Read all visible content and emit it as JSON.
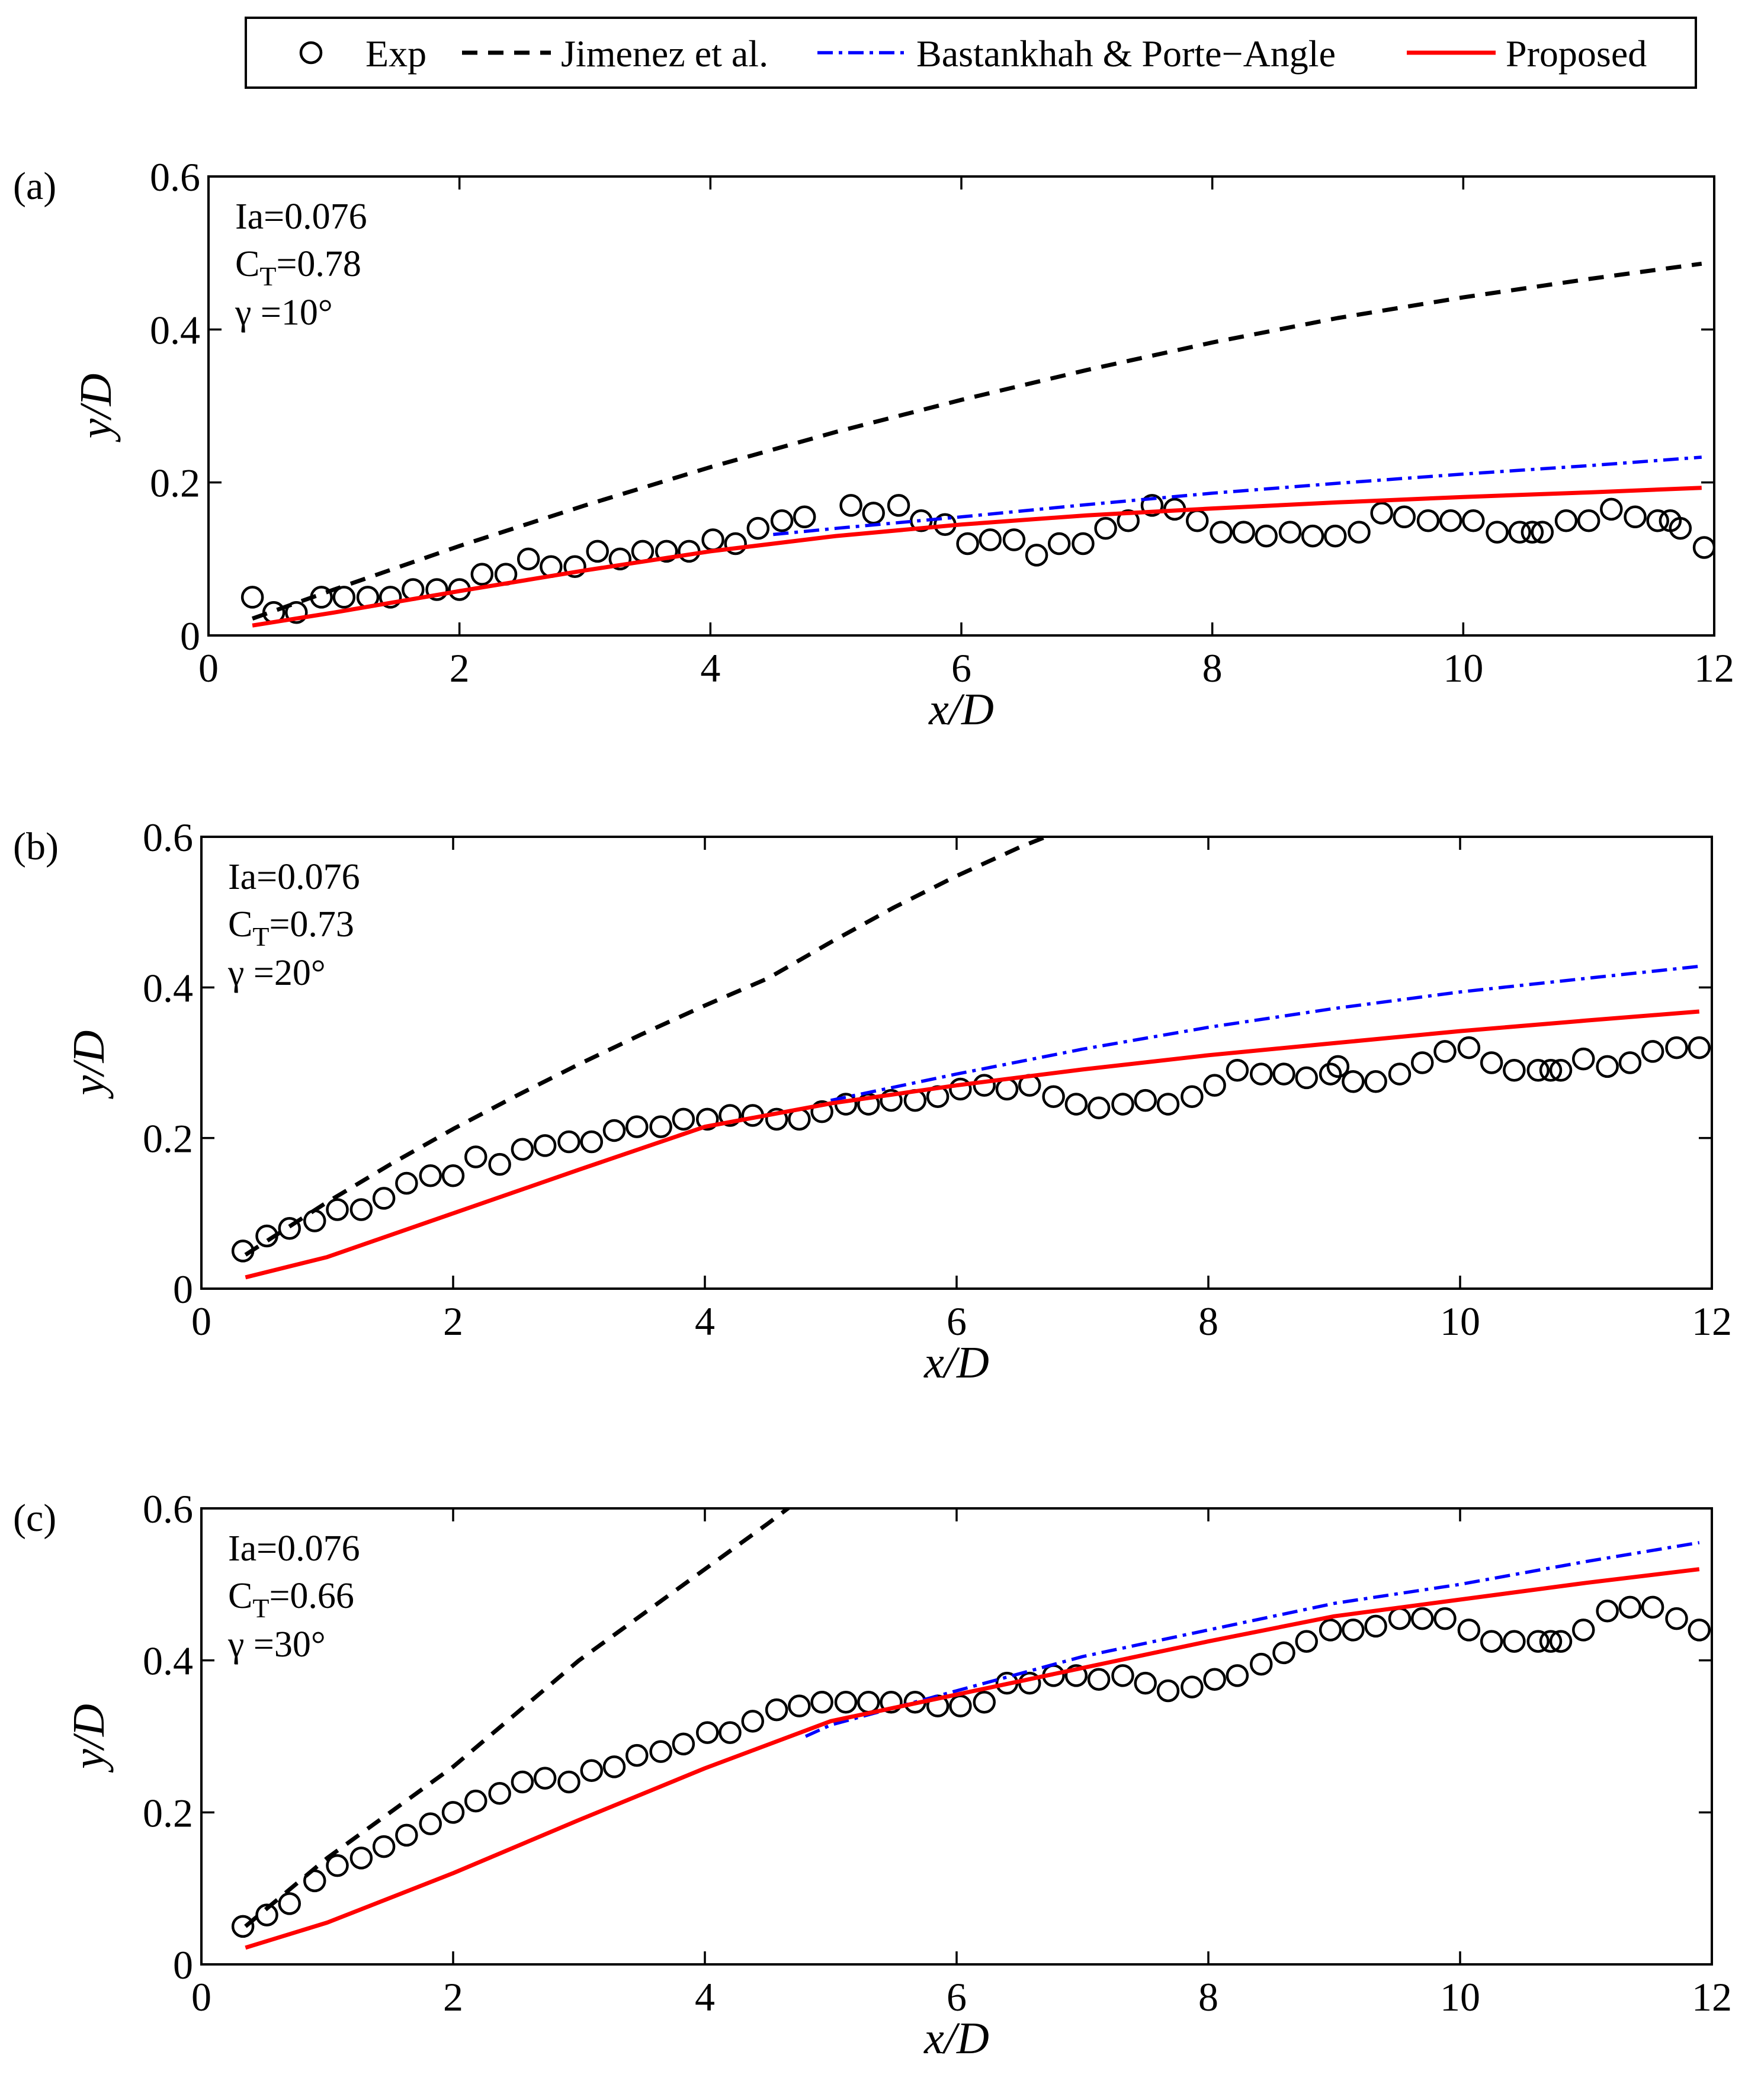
{
  "legend": {
    "entries": [
      {
        "label": "Exp",
        "style": "marker",
        "color": "#000000"
      },
      {
        "label": "Jimenez et al.",
        "style": "dashed",
        "color": "#000000"
      },
      {
        "label": "Bastankhah & Porte−Angle",
        "style": "dashdot",
        "color": "#0000ff"
      },
      {
        "label": "Proposed",
        "style": "solid",
        "color": "#ff0000"
      }
    ]
  },
  "chart_data": [
    {
      "type": "line",
      "panel_label": "(a)",
      "annotations": {
        "ia": "Ia=0.076",
        "ct_base": "C",
        "ct_sub": "T",
        "ct_value": "=0.78",
        "gamma": "γ =10°"
      },
      "xlabel": "x/D",
      "ylabel": "y/D",
      "xlim": [
        0,
        12
      ],
      "ylim": [
        0,
        0.6
      ],
      "xticks": [
        "0",
        "2",
        "4",
        "6",
        "8",
        "10",
        "12"
      ],
      "yticks": [
        "0",
        "0.2",
        "0.4",
        "0.6"
      ],
      "series": [
        {
          "name": "Exp",
          "style": "marker",
          "color": "#000000",
          "x": [
            0.35,
            0.52,
            0.7,
            0.9,
            1.08,
            1.27,
            1.45,
            1.63,
            1.82,
            2.0,
            2.18,
            2.37,
            2.55,
            2.73,
            2.92,
            3.1,
            3.28,
            3.46,
            3.65,
            3.83,
            4.02,
            4.2,
            4.38,
            4.57,
            4.75,
            5.12,
            5.3,
            5.5,
            5.68,
            5.87,
            6.05,
            6.23,
            6.42,
            6.6,
            6.78,
            6.97,
            7.15,
            7.33,
            7.52,
            7.7,
            7.88,
            8.07,
            8.25,
            8.43,
            8.62,
            8.8,
            8.98,
            9.17,
            9.35,
            9.53,
            9.72,
            9.9,
            10.08,
            10.27,
            10.45,
            10.55,
            10.63,
            10.82,
            11.0,
            11.18,
            11.37,
            11.55,
            11.65,
            11.73,
            11.92
          ],
          "y": [
            0.05,
            0.03,
            0.03,
            0.05,
            0.05,
            0.05,
            0.05,
            0.06,
            0.06,
            0.06,
            0.08,
            0.08,
            0.1,
            0.09,
            0.09,
            0.11,
            0.1,
            0.11,
            0.11,
            0.11,
            0.125,
            0.12,
            0.14,
            0.15,
            0.155,
            0.17,
            0.16,
            0.17,
            0.15,
            0.145,
            0.12,
            0.125,
            0.125,
            0.105,
            0.12,
            0.12,
            0.14,
            0.15,
            0.17,
            0.165,
            0.15,
            0.135,
            0.135,
            0.13,
            0.135,
            0.13,
            0.13,
            0.135,
            0.16,
            0.155,
            0.15,
            0.15,
            0.15,
            0.135,
            0.135,
            0.135,
            0.135,
            0.15,
            0.15,
            0.165,
            0.155,
            0.15,
            0.15,
            0.14,
            0.115
          ]
        },
        {
          "name": "Jimenez et al.",
          "style": "dashed",
          "color": "#000000",
          "x": [
            0.35,
            1,
            2,
            3,
            4,
            5,
            6,
            7,
            8,
            9,
            10,
            11,
            11.9
          ],
          "y": [
            0.022,
            0.06,
            0.117,
            0.17,
            0.22,
            0.266,
            0.308,
            0.347,
            0.383,
            0.415,
            0.442,
            0.466,
            0.486
          ]
        },
        {
          "name": "Bastankhah & Porte−Angle",
          "style": "dashdot",
          "color": "#0000ff",
          "x": [
            4.5,
            5,
            6,
            7,
            8,
            9,
            10,
            11,
            11.9
          ],
          "y": [
            0.132,
            0.14,
            0.155,
            0.171,
            0.186,
            0.199,
            0.211,
            0.222,
            0.233
          ]
        },
        {
          "name": "Proposed",
          "style": "solid",
          "color": "#ff0000",
          "x": [
            0.35,
            1,
            2,
            3,
            4,
            5,
            6,
            7,
            8,
            9,
            10,
            11,
            11.9
          ],
          "y": [
            0.013,
            0.03,
            0.058,
            0.085,
            0.11,
            0.13,
            0.145,
            0.157,
            0.166,
            0.174,
            0.181,
            0.187,
            0.193
          ]
        }
      ]
    },
    {
      "type": "line",
      "panel_label": "(b)",
      "annotations": {
        "ia": "Ia=0.076",
        "ct_base": "C",
        "ct_sub": "T",
        "ct_value": "=0.73",
        "gamma": "γ =20°"
      },
      "xlabel": "x/D",
      "ylabel": "y/D",
      "xlim": [
        0,
        12
      ],
      "ylim": [
        0,
        0.6
      ],
      "xticks": [
        "0",
        "2",
        "4",
        "6",
        "8",
        "10",
        "12"
      ],
      "yticks": [
        "0",
        "0.2",
        "0.4",
        "0.6"
      ],
      "series": [
        {
          "name": "Exp",
          "style": "marker",
          "color": "#000000",
          "x": [
            0.33,
            0.52,
            0.7,
            0.9,
            1.08,
            1.27,
            1.45,
            1.63,
            1.82,
            2.0,
            2.18,
            2.37,
            2.55,
            2.73,
            2.92,
            3.1,
            3.28,
            3.46,
            3.65,
            3.83,
            4.02,
            4.2,
            4.38,
            4.57,
            4.75,
            4.93,
            5.12,
            5.3,
            5.48,
            5.67,
            5.85,
            6.03,
            6.22,
            6.4,
            6.58,
            6.77,
            6.95,
            7.13,
            7.32,
            7.5,
            7.68,
            7.87,
            8.05,
            8.23,
            8.42,
            8.6,
            8.78,
            8.97,
            9.03,
            9.15,
            9.33,
            9.52,
            9.7,
            9.88,
            10.07,
            10.25,
            10.43,
            10.62,
            10.72,
            10.8,
            10.98,
            11.17,
            11.35,
            11.53,
            11.72,
            11.9
          ],
          "y": [
            0.05,
            0.07,
            0.08,
            0.09,
            0.105,
            0.105,
            0.12,
            0.14,
            0.15,
            0.15,
            0.175,
            0.165,
            0.185,
            0.19,
            0.195,
            0.195,
            0.21,
            0.215,
            0.215,
            0.225,
            0.225,
            0.23,
            0.23,
            0.225,
            0.225,
            0.235,
            0.245,
            0.245,
            0.25,
            0.25,
            0.255,
            0.265,
            0.27,
            0.265,
            0.27,
            0.255,
            0.245,
            0.24,
            0.245,
            0.25,
            0.245,
            0.255,
            0.27,
            0.29,
            0.285,
            0.285,
            0.28,
            0.285,
            0.295,
            0.275,
            0.275,
            0.285,
            0.3,
            0.315,
            0.32,
            0.3,
            0.29,
            0.29,
            0.29,
            0.29,
            0.305,
            0.295,
            0.3,
            0.315,
            0.32,
            0.32
          ]
        },
        {
          "name": "Jimenez et al.",
          "style": "dashed",
          "color": "#000000",
          "x": [
            0.35,
            1,
            1.5,
            2,
            2.5,
            3,
            3.5,
            4,
            4.5,
            5,
            5.5,
            6,
            6.5,
            6.8
          ],
          "y": [
            0.045,
            0.115,
            0.165,
            0.212,
            0.256,
            0.298,
            0.338,
            0.376,
            0.412,
            0.46,
            0.506,
            0.548,
            0.586,
            0.606
          ]
        },
        {
          "name": "Bastankhah & Porte−Angle",
          "style": "dashdot",
          "color": "#0000ff",
          "x": [
            5,
            6,
            7,
            8,
            9,
            10,
            11,
            11.9
          ],
          "y": [
            0.25,
            0.285,
            0.318,
            0.347,
            0.372,
            0.394,
            0.412,
            0.428
          ]
        },
        {
          "name": "Proposed",
          "style": "solid",
          "color": "#ff0000",
          "x": [
            0.35,
            1,
            2,
            3,
            4,
            5,
            6,
            7,
            8,
            9,
            10,
            11,
            11.9
          ],
          "y": [
            0.015,
            0.042,
            0.1,
            0.158,
            0.215,
            0.246,
            0.27,
            0.291,
            0.31,
            0.326,
            0.342,
            0.356,
            0.368
          ]
        }
      ]
    },
    {
      "type": "line",
      "panel_label": "(c)",
      "annotations": {
        "ia": "Ia=0.076",
        "ct_base": "C",
        "ct_sub": "T",
        "ct_value": "=0.66",
        "gamma": "γ =30°"
      },
      "xlabel": "x/D",
      "ylabel": "y/D",
      "xlim": [
        0,
        12
      ],
      "ylim": [
        0,
        0.6
      ],
      "xticks": [
        "0",
        "2",
        "4",
        "6",
        "8",
        "10",
        "12"
      ],
      "yticks": [
        "0",
        "0.2",
        "0.4",
        "0.6"
      ],
      "series": [
        {
          "name": "Exp",
          "style": "marker",
          "color": "#000000",
          "x": [
            0.33,
            0.52,
            0.7,
            0.9,
            1.08,
            1.27,
            1.45,
            1.63,
            1.82,
            2.0,
            2.18,
            2.37,
            2.55,
            2.73,
            2.92,
            3.1,
            3.28,
            3.46,
            3.65,
            3.83,
            4.02,
            4.2,
            4.38,
            4.57,
            4.75,
            4.93,
            5.12,
            5.3,
            5.48,
            5.67,
            5.85,
            6.03,
            6.22,
            6.4,
            6.58,
            6.77,
            6.95,
            7.13,
            7.32,
            7.5,
            7.68,
            7.87,
            8.05,
            8.23,
            8.42,
            8.6,
            8.78,
            8.97,
            9.15,
            9.33,
            9.52,
            9.7,
            9.88,
            10.07,
            10.25,
            10.43,
            10.62,
            10.72,
            10.8,
            10.98,
            11.17,
            11.35,
            11.53,
            11.72,
            11.9
          ],
          "y": [
            0.05,
            0.065,
            0.08,
            0.11,
            0.13,
            0.14,
            0.155,
            0.17,
            0.185,
            0.2,
            0.215,
            0.225,
            0.24,
            0.245,
            0.24,
            0.255,
            0.26,
            0.275,
            0.28,
            0.29,
            0.305,
            0.305,
            0.32,
            0.335,
            0.34,
            0.345,
            0.345,
            0.345,
            0.345,
            0.345,
            0.34,
            0.34,
            0.345,
            0.37,
            0.37,
            0.38,
            0.38,
            0.375,
            0.38,
            0.37,
            0.36,
            0.365,
            0.375,
            0.38,
            0.395,
            0.41,
            0.425,
            0.44,
            0.44,
            0.445,
            0.455,
            0.455,
            0.455,
            0.44,
            0.425,
            0.425,
            0.425,
            0.425,
            0.425,
            0.44,
            0.465,
            0.47,
            0.47,
            0.455,
            0.44
          ]
        },
        {
          "name": "Jimenez et al.",
          "style": "dashed",
          "color": "#000000",
          "x": [
            0.35,
            1,
            1.5,
            2,
            2.5,
            3,
            3.5,
            4,
            4.5,
            4.7
          ],
          "y": [
            0.05,
            0.14,
            0.2,
            0.26,
            0.33,
            0.4,
            0.46,
            0.52,
            0.58,
            0.605
          ]
        },
        {
          "name": "Bastankhah & Porte−Angle",
          "style": "dashdot",
          "color": "#0000ff",
          "x": [
            4.8,
            5,
            6,
            7,
            8,
            9,
            10,
            11,
            11.9
          ],
          "y": [
            0.3,
            0.315,
            0.36,
            0.405,
            0.44,
            0.475,
            0.5,
            0.53,
            0.555
          ]
        },
        {
          "name": "Proposed",
          "style": "solid",
          "color": "#ff0000",
          "x": [
            0.35,
            1,
            2,
            3,
            4,
            5,
            6,
            7,
            8,
            9,
            10,
            11,
            11.9
          ],
          "y": [
            0.022,
            0.055,
            0.12,
            0.19,
            0.258,
            0.32,
            0.355,
            0.39,
            0.425,
            0.458,
            0.48,
            0.502,
            0.52
          ]
        }
      ]
    }
  ]
}
